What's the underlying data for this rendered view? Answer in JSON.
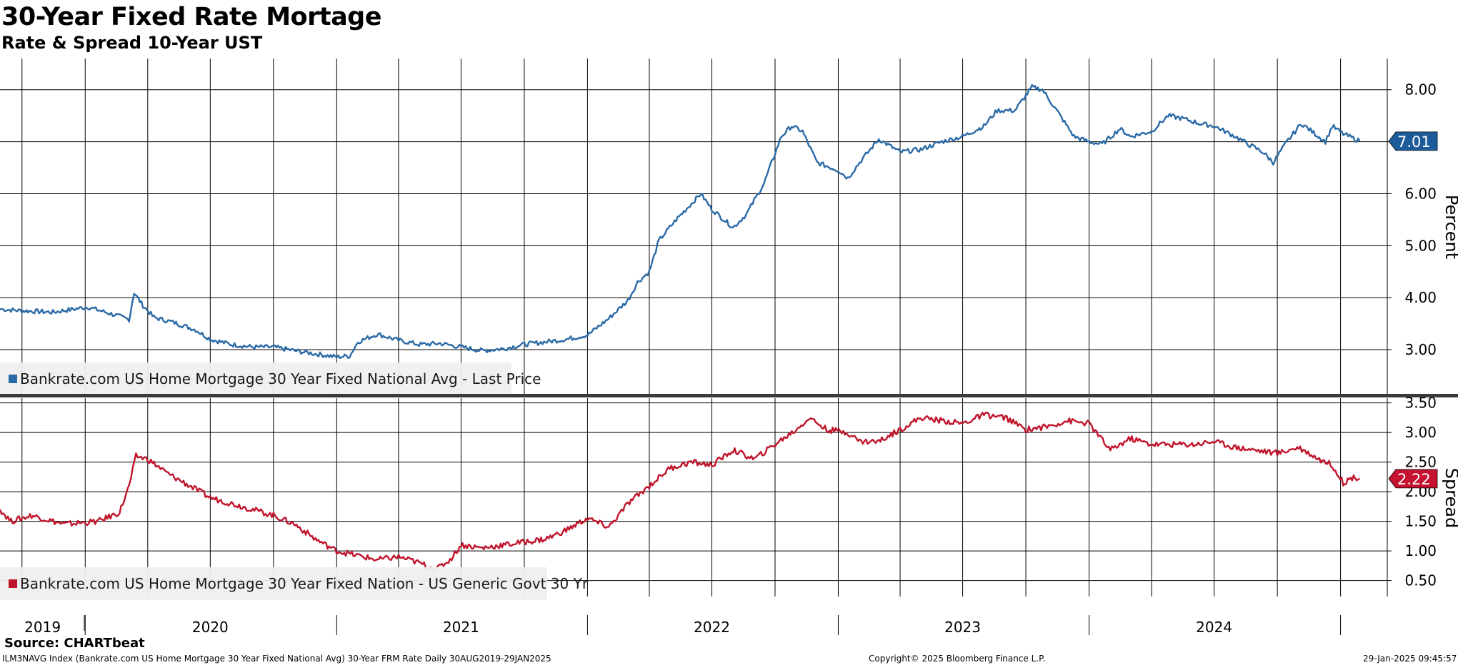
{
  "title": "30-Year Fixed Rate Mortage",
  "subtitle": "Rate & Spread 10-Year UST",
  "footer": {
    "source": "Source: CHARTbeat",
    "index_info": "ILM3NAVG Index (Bankrate.com US Home Mortgage 30 Year Fixed National Avg) 30-Year FRM Rate  Daily 30AUG2019-29JAN2025",
    "copyright": "Copyright© 2025 Bloomberg Finance L.P.",
    "timestamp": "29-Jan-2025 09:45:57"
  },
  "colors": {
    "rate": "#2a6aa6",
    "spread": "#c0142b",
    "rate_tag": "#1d5c9b",
    "spread_tag": "#c41230"
  },
  "chart_data": [
    {
      "type": "line",
      "series": [
        {
          "name": "Bankrate.com US Home Mortgage 30 Year Fixed National Avg - Last Price",
          "points": [
            [
              "2019-08-30",
              3.78
            ],
            [
              "2019-10-01",
              3.75
            ],
            [
              "2019-11-15",
              3.72
            ],
            [
              "2019-12-10",
              3.77
            ],
            [
              "2020-01-05",
              3.82
            ],
            [
              "2020-02-10",
              3.68
            ],
            [
              "2020-03-05",
              3.58
            ],
            [
              "2020-03-12",
              4.1
            ],
            [
              "2020-03-25",
              3.85
            ],
            [
              "2020-04-10",
              3.62
            ],
            [
              "2020-05-10",
              3.52
            ],
            [
              "2020-06-10",
              3.38
            ],
            [
              "2020-07-01",
              3.2
            ],
            [
              "2020-08-01",
              3.1
            ],
            [
              "2020-09-01",
              3.05
            ],
            [
              "2020-10-01",
              3.05
            ],
            [
              "2020-11-01",
              2.98
            ],
            [
              "2020-12-01",
              2.92
            ],
            [
              "2021-01-01",
              2.86
            ],
            [
              "2021-01-20",
              2.88
            ],
            [
              "2021-02-01",
              3.15
            ],
            [
              "2021-03-01",
              3.3
            ],
            [
              "2021-04-01",
              3.18
            ],
            [
              "2021-05-01",
              3.1
            ],
            [
              "2021-06-01",
              3.12
            ],
            [
              "2021-07-01",
              3.05
            ],
            [
              "2021-08-01",
              2.98
            ],
            [
              "2021-09-01",
              3.02
            ],
            [
              "2021-10-01",
              3.1
            ],
            [
              "2021-11-01",
              3.15
            ],
            [
              "2021-12-01",
              3.2
            ],
            [
              "2022-01-01",
              3.28
            ],
            [
              "2022-02-01",
              3.6
            ],
            [
              "2022-03-01",
              3.95
            ],
            [
              "2022-03-15",
              4.3
            ],
            [
              "2022-04-01",
              4.5
            ],
            [
              "2022-04-15",
              5.1
            ],
            [
              "2022-05-10",
              5.5
            ],
            [
              "2022-06-15",
              6.0
            ],
            [
              "2022-07-01",
              5.7
            ],
            [
              "2022-08-01",
              5.35
            ],
            [
              "2022-08-20",
              5.6
            ],
            [
              "2022-09-15",
              6.2
            ],
            [
              "2022-10-10",
              7.1
            ],
            [
              "2022-10-25",
              7.3
            ],
            [
              "2022-11-10",
              7.2
            ],
            [
              "2022-12-01",
              6.6
            ],
            [
              "2023-01-01",
              6.45
            ],
            [
              "2023-01-15",
              6.3
            ],
            [
              "2023-02-01",
              6.6
            ],
            [
              "2023-03-01",
              7.05
            ],
            [
              "2023-04-01",
              6.8
            ],
            [
              "2023-05-01",
              6.85
            ],
            [
              "2023-06-01",
              7.0
            ],
            [
              "2023-07-01",
              7.1
            ],
            [
              "2023-08-01",
              7.3
            ],
            [
              "2023-08-20",
              7.6
            ],
            [
              "2023-09-15",
              7.6
            ],
            [
              "2023-10-10",
              8.05
            ],
            [
              "2023-10-25",
              8.0
            ],
            [
              "2023-11-15",
              7.6
            ],
            [
              "2023-12-10",
              7.1
            ],
            [
              "2024-01-01",
              7.0
            ],
            [
              "2024-01-20",
              6.95
            ],
            [
              "2024-02-15",
              7.25
            ],
            [
              "2024-03-01",
              7.1
            ],
            [
              "2024-04-01",
              7.2
            ],
            [
              "2024-04-25",
              7.5
            ],
            [
              "2024-05-15",
              7.45
            ],
            [
              "2024-06-10",
              7.35
            ],
            [
              "2024-07-01",
              7.3
            ],
            [
              "2024-08-01",
              7.1
            ],
            [
              "2024-08-20",
              6.95
            ],
            [
              "2024-09-10",
              6.8
            ],
            [
              "2024-09-25",
              6.6
            ],
            [
              "2024-10-15",
              7.0
            ],
            [
              "2024-11-05",
              7.35
            ],
            [
              "2024-11-25",
              7.15
            ],
            [
              "2024-12-10",
              7.0
            ],
            [
              "2024-12-20",
              7.3
            ],
            [
              "2025-01-05",
              7.15
            ],
            [
              "2025-01-29",
              7.01
            ]
          ]
        }
      ],
      "yticks": [
        "3.00",
        "4.00",
        "5.00",
        "6.00",
        "7.00",
        "8.00"
      ],
      "ylim": [
        2.15,
        8.6
      ],
      "ylabel": "Percent",
      "last_value": "7.01"
    },
    {
      "type": "line",
      "series": [
        {
          "name": "Bankrate.com US Home Mortgage 30 Year Fixed Nation - US Generic Govt 30 Yr",
          "points": [
            [
              "2019-08-30",
              1.7
            ],
            [
              "2019-09-15",
              1.5
            ],
            [
              "2019-10-15",
              1.6
            ],
            [
              "2019-12-01",
              1.45
            ],
            [
              "2020-01-20",
              1.5
            ],
            [
              "2020-02-20",
              1.65
            ],
            [
              "2020-03-05",
              2.1
            ],
            [
              "2020-03-15",
              2.6
            ],
            [
              "2020-04-01",
              2.55
            ],
            [
              "2020-05-01",
              2.3
            ],
            [
              "2020-06-01",
              2.1
            ],
            [
              "2020-07-01",
              1.9
            ],
            [
              "2020-08-01",
              1.8
            ],
            [
              "2020-09-01",
              1.7
            ],
            [
              "2020-10-01",
              1.6
            ],
            [
              "2020-11-01",
              1.45
            ],
            [
              "2020-12-01",
              1.2
            ],
            [
              "2021-01-01",
              1.0
            ],
            [
              "2021-02-01",
              0.92
            ],
            [
              "2021-03-01",
              0.85
            ],
            [
              "2021-04-01",
              0.9
            ],
            [
              "2021-05-01",
              0.8
            ],
            [
              "2021-05-25",
              0.68
            ],
            [
              "2021-06-15",
              0.85
            ],
            [
              "2021-07-01",
              1.1
            ],
            [
              "2021-08-01",
              1.05
            ],
            [
              "2021-09-01",
              1.1
            ],
            [
              "2021-10-01",
              1.15
            ],
            [
              "2021-11-01",
              1.2
            ],
            [
              "2021-12-01",
              1.35
            ],
            [
              "2022-01-01",
              1.55
            ],
            [
              "2022-02-01",
              1.4
            ],
            [
              "2022-03-01",
              1.8
            ],
            [
              "2022-04-01",
              2.1
            ],
            [
              "2022-05-01",
              2.4
            ],
            [
              "2022-06-01",
              2.5
            ],
            [
              "2022-07-01",
              2.45
            ],
            [
              "2022-08-01",
              2.7
            ],
            [
              "2022-09-01",
              2.55
            ],
            [
              "2022-10-01",
              2.8
            ],
            [
              "2022-11-01",
              3.05
            ],
            [
              "2022-11-20",
              3.25
            ],
            [
              "2022-12-15",
              3.05
            ],
            [
              "2023-01-15",
              3.0
            ],
            [
              "2023-02-01",
              2.85
            ],
            [
              "2023-03-01",
              2.85
            ],
            [
              "2023-04-01",
              3.05
            ],
            [
              "2023-05-01",
              3.25
            ],
            [
              "2023-06-01",
              3.2
            ],
            [
              "2023-07-01",
              3.15
            ],
            [
              "2023-08-01",
              3.3
            ],
            [
              "2023-09-01",
              3.25
            ],
            [
              "2023-10-01",
              3.05
            ],
            [
              "2023-11-01",
              3.1
            ],
            [
              "2023-12-01",
              3.2
            ],
            [
              "2024-01-01",
              3.15
            ],
            [
              "2024-02-01",
              2.7
            ],
            [
              "2024-03-01",
              2.9
            ],
            [
              "2024-04-01",
              2.8
            ],
            [
              "2024-05-01",
              2.8
            ],
            [
              "2024-06-01",
              2.8
            ],
            [
              "2024-07-01",
              2.85
            ],
            [
              "2024-08-01",
              2.75
            ],
            [
              "2024-09-01",
              2.7
            ],
            [
              "2024-10-01",
              2.65
            ],
            [
              "2024-11-01",
              2.75
            ],
            [
              "2024-12-01",
              2.55
            ],
            [
              "2024-12-20",
              2.45
            ],
            [
              "2025-01-05",
              2.15
            ],
            [
              "2025-01-20",
              2.25
            ],
            [
              "2025-01-29",
              2.22
            ]
          ]
        }
      ],
      "yticks": [
        "0.50",
        "1.00",
        "1.50",
        "2.00",
        "2.50",
        "3.00",
        "3.50"
      ],
      "ylim": [
        0.23,
        3.58
      ],
      "ylabel": "Spread",
      "last_value": "2.22"
    }
  ],
  "xaxis": {
    "year_labels": [
      {
        "label": "2019",
        "date": "2019-10-31"
      },
      {
        "label": "2020",
        "date": "2020-07-01"
      },
      {
        "label": "2021",
        "date": "2021-07-01"
      },
      {
        "label": "2022",
        "date": "2022-07-01"
      },
      {
        "label": "2023",
        "date": "2023-07-01"
      },
      {
        "label": "2024",
        "date": "2024-07-01"
      }
    ],
    "range": [
      "2019-08-30",
      "2025-03-10"
    ]
  }
}
